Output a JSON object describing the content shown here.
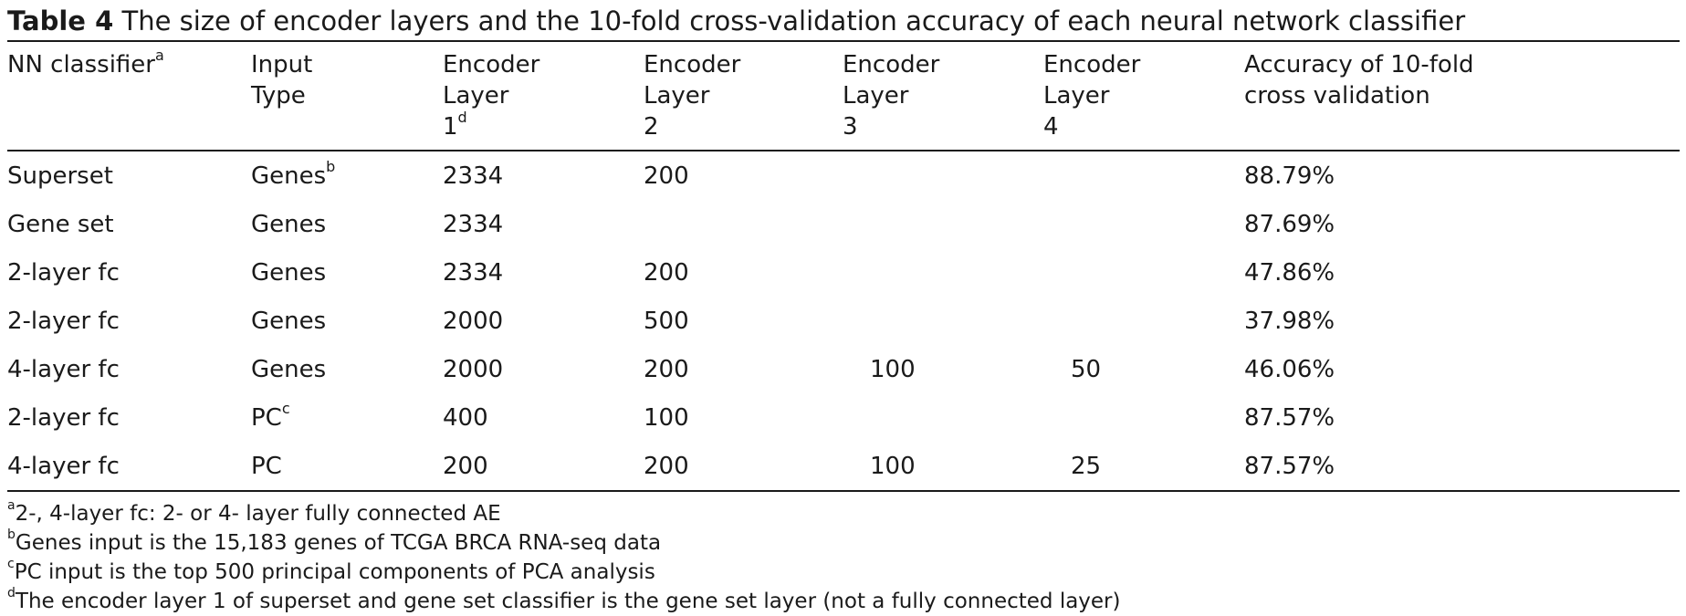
{
  "caption": {
    "label": "Table 4",
    "text": "The size of encoder layers and the 10-fold cross-validation accuracy of each neural network classifier"
  },
  "headers": [
    {
      "lines": [
        "NN classifier"
      ],
      "sup": "a"
    },
    {
      "lines": [
        "Input",
        "Type"
      ],
      "sup": ""
    },
    {
      "lines": [
        "Encoder",
        "Layer",
        "1"
      ],
      "sup": "d"
    },
    {
      "lines": [
        "Encoder",
        "Layer",
        "2"
      ],
      "sup": ""
    },
    {
      "lines": [
        "Encoder",
        "Layer",
        "3"
      ],
      "sup": ""
    },
    {
      "lines": [
        "Encoder",
        "Layer",
        "4"
      ],
      "sup": ""
    },
    {
      "lines": [
        "Accuracy of 10-fold",
        "cross validation"
      ],
      "sup": ""
    }
  ],
  "rows": [
    {
      "classifier": "Superset",
      "input": "Genes",
      "input_sup": "b",
      "l1": "2334",
      "l2": "200",
      "l3": "",
      "l4": "",
      "acc": "88.79%"
    },
    {
      "classifier": "Gene set",
      "input": "Genes",
      "input_sup": "",
      "l1": "2334",
      "l2": "",
      "l3": "",
      "l4": "",
      "acc": "87.69%"
    },
    {
      "classifier": "2-layer fc",
      "input": "Genes",
      "input_sup": "",
      "l1": "2334",
      "l2": "200",
      "l3": "",
      "l4": "",
      "acc": "47.86%"
    },
    {
      "classifier": "2-layer fc",
      "input": "Genes",
      "input_sup": "",
      "l1": "2000",
      "l2": "500",
      "l3": "",
      "l4": "",
      "acc": "37.98%"
    },
    {
      "classifier": "4-layer fc",
      "input": "Genes",
      "input_sup": "",
      "l1": "2000",
      "l2": "200",
      "l3": "100",
      "l4": "50",
      "acc": "46.06%"
    },
    {
      "classifier": "2-layer fc",
      "input": "PC",
      "input_sup": "c",
      "l1": "400",
      "l2": "100",
      "l3": "",
      "l4": "",
      "acc": "87.57%"
    },
    {
      "classifier": "4-layer fc",
      "input": "PC",
      "input_sup": "",
      "l1": "200",
      "l2": "200",
      "l3": "100",
      "l4": "25",
      "acc": "87.57%"
    }
  ],
  "footnotes": [
    {
      "mark": "a",
      "text": "2-, 4-layer fc: 2- or 4- layer fully connected AE"
    },
    {
      "mark": "b",
      "text": "Genes input is the 15,183 genes of TCGA BRCA RNA-seq data"
    },
    {
      "mark": "c",
      "text": "PC input is the top 500 principal components of PCA analysis"
    },
    {
      "mark": "d",
      "text": "The encoder layer 1 of superset and gene set classifier is the gene set layer (not a fully connected layer)"
    }
  ]
}
